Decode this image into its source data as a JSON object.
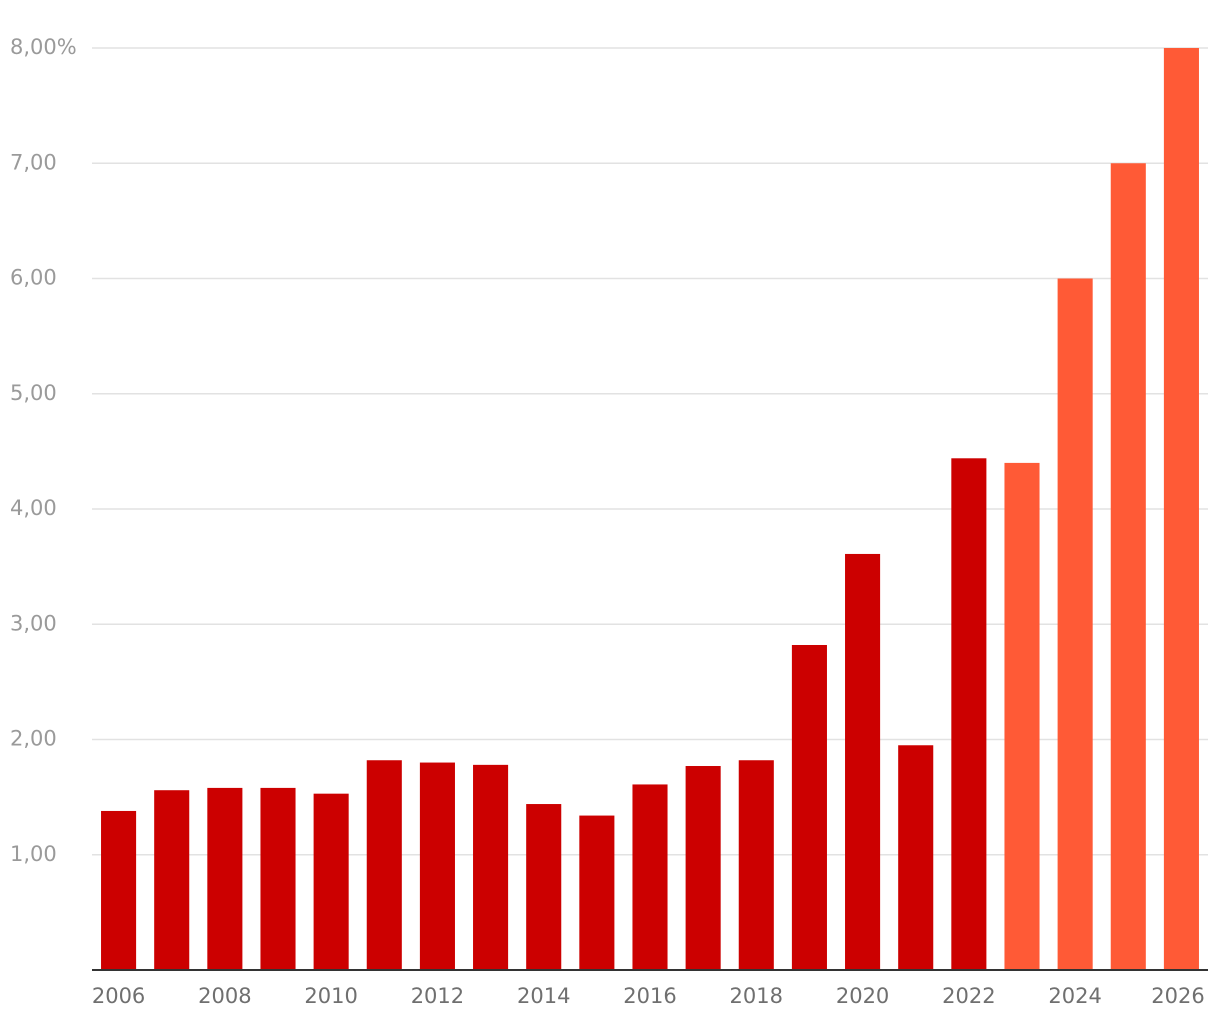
{
  "chart_data": {
    "type": "bar",
    "x": [
      2006,
      2007,
      2008,
      2009,
      2010,
      2011,
      2012,
      2013,
      2014,
      2015,
      2016,
      2017,
      2018,
      2019,
      2020,
      2021,
      2022,
      2023,
      2024,
      2025,
      2026
    ],
    "values": [
      1.38,
      1.56,
      1.58,
      1.58,
      1.53,
      1.82,
      1.8,
      1.78,
      1.44,
      1.34,
      1.61,
      1.77,
      1.82,
      2.82,
      3.61,
      1.95,
      4.44,
      4.4,
      6.0,
      7.0,
      8.0
    ],
    "colors": [
      "#cc0000",
      "#cc0000",
      "#cc0000",
      "#cc0000",
      "#cc0000",
      "#cc0000",
      "#cc0000",
      "#cc0000",
      "#cc0000",
      "#cc0000",
      "#cc0000",
      "#cc0000",
      "#cc0000",
      "#cc0000",
      "#cc0000",
      "#cc0000",
      "#cc0000",
      "#ff5a36",
      "#ff5a36",
      "#ff5a36",
      "#ff5a36"
    ],
    "xlim": [
      2005.5,
      2026.5
    ],
    "xticks": [
      2006,
      2008,
      2010,
      2012,
      2014,
      2016,
      2018,
      2020,
      2022,
      2024,
      2026
    ],
    "ylim": [
      0,
      8
    ],
    "yticks": [
      {
        "value": 1,
        "label": "1,00"
      },
      {
        "value": 2,
        "label": "2,00"
      },
      {
        "value": 3,
        "label": "3,00"
      },
      {
        "value": 4,
        "label": "4,00"
      },
      {
        "value": 5,
        "label": "5,00"
      },
      {
        "value": 6,
        "label": "6,00"
      },
      {
        "value": 7,
        "label": "7,00"
      },
      {
        "value": 8,
        "label": "8,00%"
      }
    ],
    "grid": true
  }
}
